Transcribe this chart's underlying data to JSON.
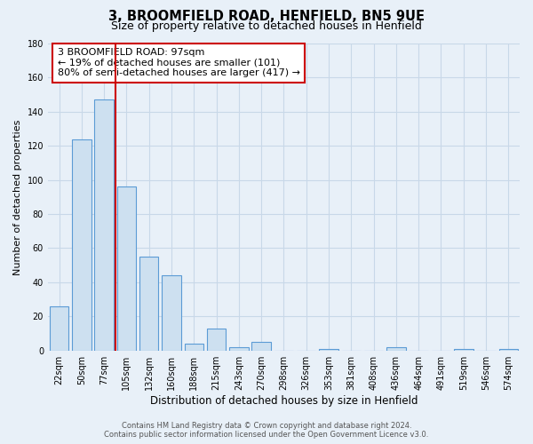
{
  "title": "3, BROOMFIELD ROAD, HENFIELD, BN5 9UE",
  "subtitle": "Size of property relative to detached houses in Henfield",
  "xlabel": "Distribution of detached houses by size in Henfield",
  "ylabel": "Number of detached properties",
  "bin_labels": [
    "22sqm",
    "50sqm",
    "77sqm",
    "105sqm",
    "132sqm",
    "160sqm",
    "188sqm",
    "215sqm",
    "243sqm",
    "270sqm",
    "298sqm",
    "326sqm",
    "353sqm",
    "381sqm",
    "408sqm",
    "436sqm",
    "464sqm",
    "491sqm",
    "519sqm",
    "546sqm",
    "574sqm"
  ],
  "bar_heights": [
    26,
    124,
    147,
    96,
    55,
    44,
    4,
    13,
    2,
    5,
    0,
    0,
    1,
    0,
    0,
    2,
    0,
    0,
    1,
    0,
    1
  ],
  "bar_color": "#cde0f0",
  "bar_edge_color": "#5b9bd5",
  "ylim": [
    0,
    180
  ],
  "yticks": [
    0,
    20,
    40,
    60,
    80,
    100,
    120,
    140,
    160,
    180
  ],
  "property_line_x": 2.5,
  "property_line_color": "#cc0000",
  "annotation_title": "3 BROOMFIELD ROAD: 97sqm",
  "annotation_line1": "← 19% of detached houses are smaller (101)",
  "annotation_line2": "80% of semi-detached houses are larger (417) →",
  "annotation_box_color": "#ffffff",
  "annotation_box_edge": "#cc0000",
  "footer_line1": "Contains HM Land Registry data © Crown copyright and database right 2024.",
  "footer_line2": "Contains public sector information licensed under the Open Government Licence v3.0.",
  "bg_color": "#e8f0f8",
  "plot_bg_color": "#e8f0f8",
  "grid_color": "#c8d8e8",
  "title_fontsize": 10.5,
  "subtitle_fontsize": 9,
  "xlabel_fontsize": 8.5,
  "ylabel_fontsize": 8,
  "tick_fontsize": 7,
  "footer_fontsize": 6,
  "ann_fontsize": 8
}
